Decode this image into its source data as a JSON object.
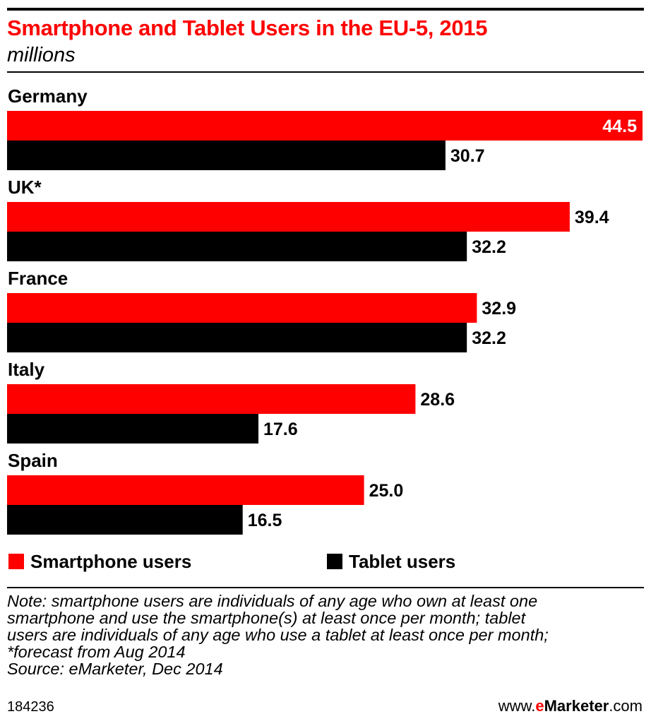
{
  "header": {
    "title": "Smartphone and Tablet Users in the EU-5, 2015",
    "subtitle": "millions"
  },
  "colors": {
    "smartphone": "#ff0000",
    "tablet": "#000000",
    "title": "#ff0000"
  },
  "chart_data": {
    "type": "bar",
    "orientation": "horizontal",
    "title": "Smartphone and Tablet Users in the EU-5, 2015",
    "subtitle": "millions",
    "categories": [
      "Germany",
      "UK*",
      "France",
      "Italy",
      "Spain"
    ],
    "series": [
      {
        "name": "Smartphone users",
        "color": "#ff0000",
        "values": [
          44.5,
          39.4,
          32.9,
          28.6,
          25.0
        ],
        "labels": [
          "44.5",
          "39.4",
          "32.9",
          "28.6",
          "25.0"
        ]
      },
      {
        "name": "Tablet users",
        "color": "#000000",
        "values": [
          30.7,
          32.2,
          32.2,
          17.6,
          16.5
        ],
        "labels": [
          "30.7",
          "32.2",
          "32.2",
          "17.6",
          "16.5"
        ]
      }
    ],
    "xlim": [
      0,
      44.5
    ],
    "grid": false,
    "legend_position": "bottom"
  },
  "legend": {
    "smartphone_label": "Smartphone users",
    "tablet_label": "Tablet users"
  },
  "notes": {
    "lines": [
      "Note: smartphone users are individuals of any age who own at least one",
      "smartphone and use the smartphone(s) at least once per month; tablet",
      "users are individuals of any age who use a tablet at least once per month;",
      "*forecast from Aug 2014",
      "Source: eMarketer, Dec 2014"
    ]
  },
  "footer": {
    "chart_id": "184236",
    "brand_prefix": "www.",
    "brand_e": "e",
    "brand_name": "Marketer",
    "brand_suffix": ".com"
  }
}
